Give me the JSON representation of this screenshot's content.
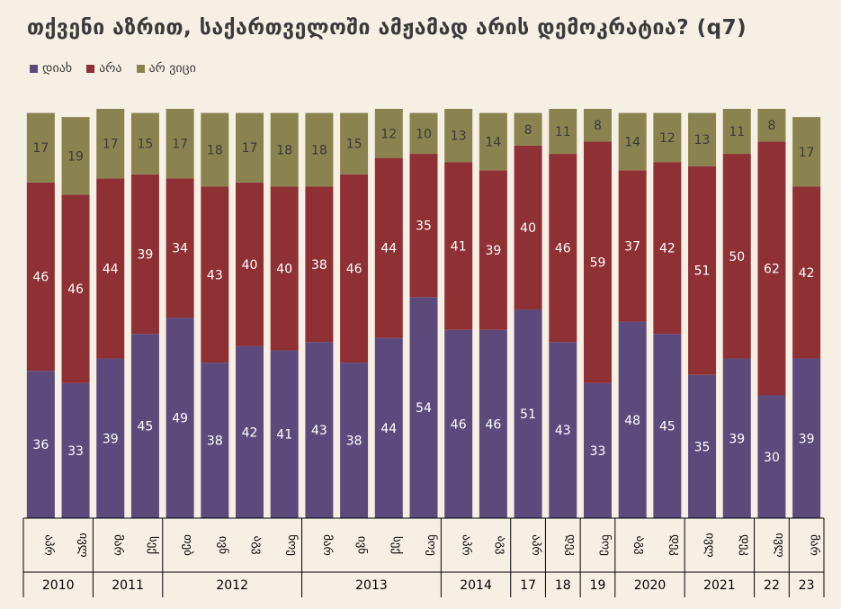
{
  "title": "თქვენი აზრით, საქართველოში ამჟამად არის დემოკრატია? (q7)",
  "colors": {
    "yes": "#5d4a7c",
    "no": "#8e3034",
    "dk": "#8a8350"
  },
  "chart_data": {
    "type": "bar",
    "stacked": true,
    "legend_position": "top-left",
    "title": "თქვენი აზრით, საქართველოში ამჟამად არის დემოკრატია? (q7)",
    "categories": [
      "აპრ",
      "ივლ",
      "მარ",
      "სექ",
      "თებ",
      "ივნ",
      "აგვ",
      "ნოე",
      "მარ",
      "ივნ",
      "სექ",
      "ნოე",
      "აპრ",
      "აგვ",
      "აპრ",
      "დეკ",
      "ნოე",
      "აგვ",
      "დეკ",
      "ივლ",
      "დეკ",
      "ივლ",
      "მარ"
    ],
    "years": [
      {
        "label": "2010",
        "span": 2
      },
      {
        "label": "2011",
        "span": 2
      },
      {
        "label": "2012",
        "span": 4
      },
      {
        "label": "2013",
        "span": 4
      },
      {
        "label": "2014",
        "span": 2
      },
      {
        "label": "17",
        "span": 1
      },
      {
        "label": "18",
        "span": 1
      },
      {
        "label": "19",
        "span": 1
      },
      {
        "label": "2020",
        "span": 2
      },
      {
        "label": "2021",
        "span": 2
      },
      {
        "label": "22",
        "span": 1
      },
      {
        "label": "23",
        "span": 1
      }
    ],
    "series": [
      {
        "name": "დიახ",
        "color": "#5d4a7c",
        "values": [
          36,
          33,
          39,
          45,
          49,
          38,
          42,
          41,
          43,
          38,
          44,
          54,
          46,
          46,
          51,
          43,
          33,
          48,
          45,
          35,
          39,
          30,
          39
        ]
      },
      {
        "name": "არა",
        "color": "#8e3034",
        "values": [
          46,
          46,
          44,
          39,
          34,
          43,
          40,
          40,
          38,
          46,
          44,
          35,
          41,
          39,
          40,
          46,
          59,
          37,
          42,
          51,
          50,
          62,
          42
        ]
      },
      {
        "name": "არ ვიცი",
        "color": "#8a8350",
        "values": [
          17,
          19,
          17,
          15,
          17,
          18,
          17,
          18,
          18,
          15,
          12,
          10,
          13,
          14,
          8,
          11,
          8,
          14,
          12,
          13,
          11,
          8,
          17
        ]
      }
    ],
    "ylim": [
      0,
      100
    ]
  }
}
